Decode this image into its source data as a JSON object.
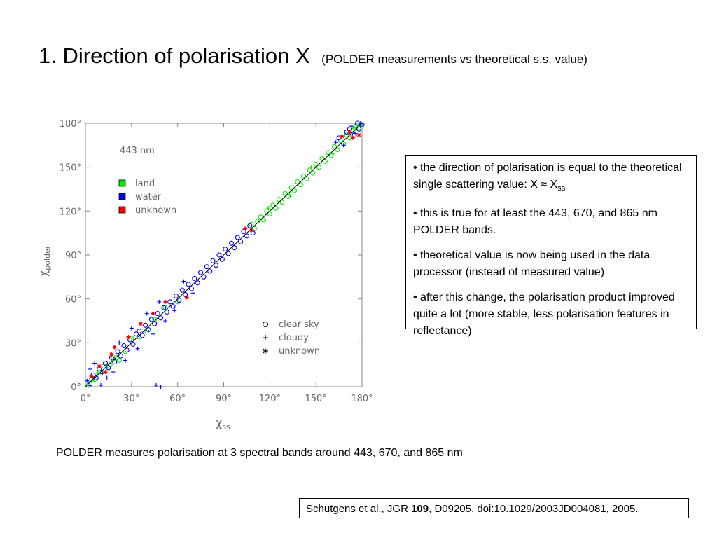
{
  "slide": {
    "title": "1. Direction of polarisation X",
    "subtitle": "(POLDER measurements vs theoretical s.s. value)"
  },
  "info_box": {
    "bullet1_prefix": "• the direction of polarisation is equal to the theoretical single scattering value: X ≈ X",
    "bullet1_sub": "ss",
    "bullet2": "• this is true for at least the 443, 670, and 865 nm POLDER bands.",
    "bullet3": "• theoretical value is now being used in the data processor (instead of measured value)",
    "bullet4": "• after this change, the polarisation product improved quite a lot (more stable, less polarisation features in reflectance)"
  },
  "caption": "POLDER measures polarisation at 3 spectral bands around 443, 670, and 865 nm",
  "citation": {
    "prefix": "Schutgens et al., JGR ",
    "volume": "109",
    "suffix": ", D09205, doi:10.1029/2003JD004081, 2005."
  },
  "chart_data": {
    "type": "scatter",
    "annotation": "443 nm",
    "xlabel_base": "χ",
    "xlabel_sub": "ss",
    "ylabel_base": "χ",
    "ylabel_sub": "polder",
    "xlim": [
      0,
      180
    ],
    "ylim": [
      0,
      180
    ],
    "xticks": [
      0,
      30,
      60,
      90,
      120,
      150,
      180
    ],
    "yticks": [
      0,
      30,
      60,
      90,
      120,
      150,
      180
    ],
    "xtick_labels": [
      "0°",
      "30°",
      "60°",
      "90°",
      "120°",
      "150°",
      "180°"
    ],
    "ytick_labels": [
      "0°",
      "30°",
      "60°",
      "90°",
      "120°",
      "150°",
      "180°"
    ],
    "legend_surface": [
      {
        "label": "land",
        "color": "#00ee00"
      },
      {
        "label": "water",
        "color": "#0000ff"
      },
      {
        "label": "unknown",
        "color": "#ff0000"
      }
    ],
    "legend_sky": [
      {
        "label": "clear sky",
        "marker": "circle"
      },
      {
        "label": "cloudy",
        "marker": "plus"
      },
      {
        "label": "unknown",
        "marker": "asterisk"
      }
    ],
    "reference_line": [
      [
        0,
        0
      ],
      [
        180,
        180
      ]
    ],
    "series": [
      {
        "name": "land",
        "color": "#00ee00",
        "points": [
          [
            2,
            1,
            "o"
          ],
          [
            4,
            5,
            "o"
          ],
          [
            6,
            5,
            "o"
          ],
          [
            8,
            9,
            "+"
          ],
          [
            10,
            10,
            "o"
          ],
          [
            12,
            14,
            "o"
          ],
          [
            14,
            13,
            "+"
          ],
          [
            16,
            15,
            "o"
          ],
          [
            18,
            19,
            "o"
          ],
          [
            20,
            20,
            "o"
          ],
          [
            22,
            18,
            "o"
          ],
          [
            26,
            24,
            "o"
          ],
          [
            30,
            33,
            "o"
          ],
          [
            35,
            33,
            "+"
          ],
          [
            40,
            38,
            "o"
          ],
          [
            45,
            46,
            "o"
          ],
          [
            52,
            54,
            "o"
          ],
          [
            60,
            58,
            "o"
          ],
          [
            108,
            111,
            "o"
          ],
          [
            110,
            108,
            "o"
          ],
          [
            112,
            113,
            "o"
          ],
          [
            114,
            116,
            "o"
          ],
          [
            116,
            114,
            "o"
          ],
          [
            118,
            120,
            "o"
          ],
          [
            120,
            118,
            "o"
          ],
          [
            122,
            124,
            "o"
          ],
          [
            124,
            122,
            "o"
          ],
          [
            126,
            128,
            "o"
          ],
          [
            128,
            126,
            "o"
          ],
          [
            130,
            132,
            "o"
          ],
          [
            132,
            130,
            "o"
          ],
          [
            134,
            136,
            "o"
          ],
          [
            136,
            134,
            "o"
          ],
          [
            138,
            140,
            "o"
          ],
          [
            140,
            138,
            "o"
          ],
          [
            142,
            144,
            "o"
          ],
          [
            144,
            142,
            "o"
          ],
          [
            146,
            148,
            "o"
          ],
          [
            148,
            146,
            "o"
          ],
          [
            150,
            152,
            "o"
          ],
          [
            152,
            150,
            "o"
          ],
          [
            154,
            156,
            "o"
          ],
          [
            156,
            154,
            "o"
          ],
          [
            158,
            160,
            "o"
          ],
          [
            160,
            158,
            "o"
          ],
          [
            162,
            164,
            "o"
          ],
          [
            164,
            162,
            "o"
          ],
          [
            166,
            168,
            "o"
          ],
          [
            168,
            166,
            "o"
          ],
          [
            170,
            172,
            "o"
          ],
          [
            172,
            170,
            "o"
          ],
          [
            174,
            175,
            "o"
          ],
          [
            176,
            178,
            "o"
          ],
          [
            178,
            177,
            "o"
          ],
          [
            179,
            179,
            "o"
          ],
          [
            119,
            122,
            "+"
          ],
          [
            133,
            131,
            "+"
          ],
          [
            147,
            150,
            "+"
          ],
          [
            161,
            159,
            "+"
          ],
          [
            175,
            177,
            "+"
          ]
        ]
      },
      {
        "name": "water",
        "color": "#0000ff",
        "points": [
          [
            1,
            4,
            "+"
          ],
          [
            3,
            2,
            "o"
          ],
          [
            5,
            8,
            "o"
          ],
          [
            7,
            6,
            "o"
          ],
          [
            9,
            12,
            "o"
          ],
          [
            11,
            9,
            "+"
          ],
          [
            13,
            16,
            "o"
          ],
          [
            15,
            13,
            "o"
          ],
          [
            17,
            20,
            "o"
          ],
          [
            19,
            17,
            "o"
          ],
          [
            21,
            24,
            "o"
          ],
          [
            23,
            21,
            "o"
          ],
          [
            25,
            28,
            "o"
          ],
          [
            27,
            25,
            "o"
          ],
          [
            29,
            32,
            "o"
          ],
          [
            31,
            29,
            "o"
          ],
          [
            33,
            36,
            "o"
          ],
          [
            35,
            38,
            "o"
          ],
          [
            37,
            35,
            "o"
          ],
          [
            39,
            42,
            "o"
          ],
          [
            41,
            39,
            "o"
          ],
          [
            43,
            46,
            "o"
          ],
          [
            45,
            43,
            "o"
          ],
          [
            47,
            50,
            "o"
          ],
          [
            49,
            47,
            "o"
          ],
          [
            51,
            54,
            "o"
          ],
          [
            53,
            51,
            "o"
          ],
          [
            55,
            58,
            "o"
          ],
          [
            57,
            55,
            "o"
          ],
          [
            59,
            62,
            "o"
          ],
          [
            61,
            59,
            "o"
          ],
          [
            63,
            66,
            "o"
          ],
          [
            65,
            63,
            "o"
          ],
          [
            67,
            70,
            "o"
          ],
          [
            69,
            67,
            "o"
          ],
          [
            71,
            74,
            "o"
          ],
          [
            73,
            71,
            "o"
          ],
          [
            75,
            78,
            "o"
          ],
          [
            77,
            75,
            "o"
          ],
          [
            79,
            82,
            "o"
          ],
          [
            81,
            79,
            "o"
          ],
          [
            83,
            86,
            "o"
          ],
          [
            85,
            83,
            "o"
          ],
          [
            87,
            90,
            "o"
          ],
          [
            89,
            87,
            "o"
          ],
          [
            91,
            94,
            "o"
          ],
          [
            93,
            91,
            "o"
          ],
          [
            95,
            98,
            "o"
          ],
          [
            97,
            95,
            "o"
          ],
          [
            99,
            102,
            "o"
          ],
          [
            101,
            99,
            "o"
          ],
          [
            103,
            106,
            "o"
          ],
          [
            105,
            103,
            "o"
          ],
          [
            107,
            110,
            "o"
          ],
          [
            109,
            105,
            "o"
          ],
          [
            3,
            12,
            "+"
          ],
          [
            6,
            16,
            "+"
          ],
          [
            10,
            1,
            "+"
          ],
          [
            14,
            6,
            "+"
          ],
          [
            18,
            10,
            "+"
          ],
          [
            22,
            30,
            "+"
          ],
          [
            26,
            18,
            "+"
          ],
          [
            30,
            40,
            "+"
          ],
          [
            34,
            26,
            "+"
          ],
          [
            40,
            50,
            "+"
          ],
          [
            44,
            36,
            "+"
          ],
          [
            48,
            58,
            "+"
          ],
          [
            52,
            45,
            "+"
          ],
          [
            46,
            1,
            "+"
          ],
          [
            49,
            0,
            "+"
          ],
          [
            58,
            52,
            "+"
          ],
          [
            64,
            72,
            "+"
          ],
          [
            70,
            64,
            "+"
          ],
          [
            165,
            170,
            "o"
          ],
          [
            170,
            174,
            "o"
          ],
          [
            172,
            176,
            "o"
          ],
          [
            175,
            172,
            "o"
          ],
          [
            177,
            180,
            "o"
          ],
          [
            178,
            176,
            "o"
          ],
          [
            180,
            179,
            "o"
          ],
          [
            163,
            167,
            "+"
          ],
          [
            168,
            165,
            "+"
          ],
          [
            173,
            178,
            "+"
          ],
          [
            176,
            173,
            "+"
          ],
          [
            179,
            181,
            "+"
          ]
        ]
      },
      {
        "name": "unknown",
        "color": "#ff0000",
        "points": [
          [
            4,
            7,
            "*"
          ],
          [
            9,
            14,
            "*"
          ],
          [
            13,
            10,
            "*"
          ],
          [
            17,
            22,
            "*"
          ],
          [
            19,
            27,
            "*"
          ],
          [
            28,
            34,
            "*"
          ],
          [
            36,
            43,
            "*"
          ],
          [
            44,
            50,
            "*"
          ],
          [
            52,
            58,
            "*"
          ],
          [
            66,
            61,
            "*"
          ],
          [
            104,
            108,
            "*"
          ],
          [
            108,
            107,
            "*"
          ],
          [
            167,
            171,
            "*"
          ],
          [
            172,
            174,
            "*"
          ],
          [
            174,
            170,
            "*"
          ],
          [
            178,
            172,
            "*"
          ]
        ]
      }
    ]
  }
}
